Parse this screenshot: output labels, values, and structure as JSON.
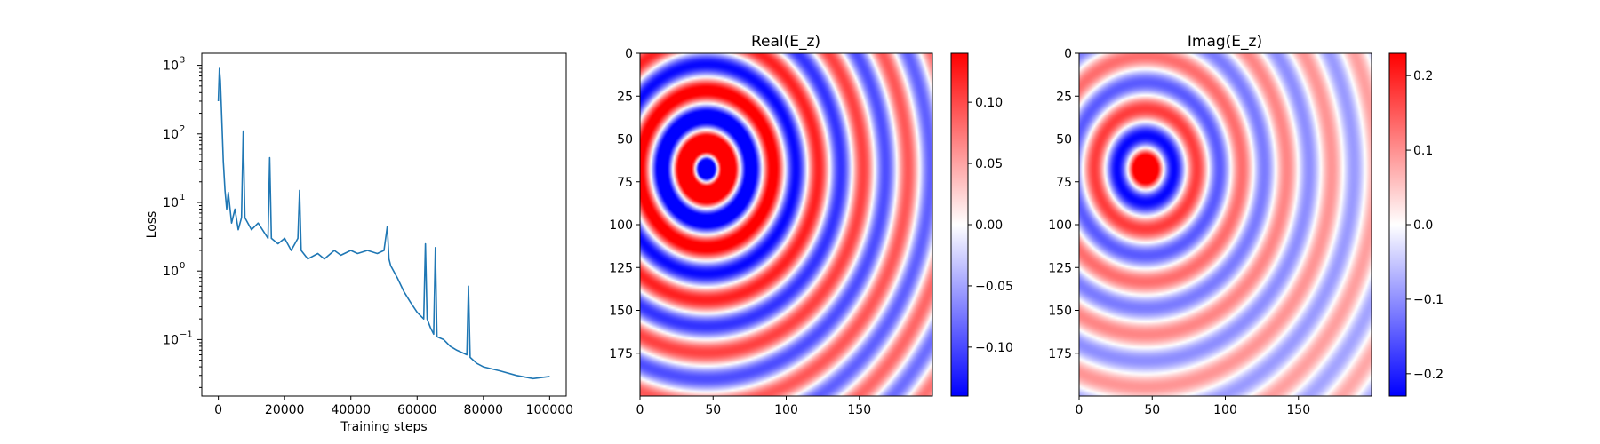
{
  "chart_data": [
    {
      "type": "line",
      "title": "",
      "xlabel": "Training steps",
      "ylabel": "Loss",
      "yscale": "log",
      "xlim": [
        -5000,
        105000
      ],
      "ylim": [
        0.015,
        1500
      ],
      "xticks": [
        0,
        20000,
        40000,
        60000,
        80000,
        100000
      ],
      "xtick_labels": [
        "0",
        "20000",
        "40000",
        "60000",
        "80000",
        "100000"
      ],
      "yticks": [
        0.1,
        1,
        10,
        100,
        1000
      ],
      "ytick_labels": [
        "10",
        "10",
        "10",
        "10",
        "10"
      ],
      "ytick_exponents": [
        "−1",
        "0",
        "1",
        "2",
        "3"
      ],
      "color": "#1f77b4",
      "grid": false,
      "series": [
        {
          "x": [
            0,
            300,
            600,
            900,
            1200,
            1500,
            2000,
            2500,
            3000,
            4000,
            5000,
            6000,
            7000,
            7500,
            8000,
            10000,
            12000,
            15000,
            15500,
            16000,
            18000,
            20000,
            22000,
            24000,
            24500,
            25000,
            27000,
            30000,
            32000,
            35000,
            37000,
            40000,
            42000,
            45000,
            48000,
            50000,
            51000,
            51500,
            52000,
            54000,
            56000,
            58000,
            60000,
            62000,
            62500,
            63000,
            64000,
            65000,
            65500,
            66000,
            68000,
            70000,
            72000,
            75000,
            75500,
            76000,
            78000,
            80000,
            85000,
            90000,
            95000,
            100000
          ],
          "y": [
            300,
            900,
            600,
            250,
            100,
            40,
            15,
            8,
            14,
            5,
            8,
            4,
            6,
            110,
            6,
            4,
            5,
            3,
            45,
            3,
            2.5,
            3,
            2,
            3,
            15,
            2,
            1.5,
            1.8,
            1.5,
            2,
            1.7,
            2,
            1.8,
            2,
            1.8,
            2,
            4.5,
            1.5,
            1.2,
            0.8,
            0.5,
            0.35,
            0.25,
            0.2,
            2.5,
            0.2,
            0.15,
            0.12,
            2.2,
            0.11,
            0.1,
            0.08,
            0.07,
            0.06,
            0.6,
            0.055,
            0.045,
            0.04,
            0.035,
            0.03,
            0.027,
            0.029
          ]
        }
      ]
    },
    {
      "type": "heatmap",
      "title": "Real(E_z)",
      "xlabel": "",
      "ylabel": "",
      "colormap": "bwr",
      "xlim": [
        0,
        200
      ],
      "ylim": [
        200,
        0
      ],
      "xticks": [
        0,
        50,
        100,
        150
      ],
      "yticks": [
        0,
        25,
        50,
        75,
        100,
        125,
        150,
        175
      ],
      "source_center": [
        45,
        67
      ],
      "vmin": -0.14,
      "vmax": 0.14,
      "colorbar_ticks": [
        0.1,
        0.05,
        0.0,
        -0.05,
        -0.1
      ],
      "colorbar_labels": [
        "0.10",
        "0.05",
        "0.00",
        "−0.05",
        "−0.10"
      ]
    },
    {
      "type": "heatmap",
      "title": "Imag(E_z)",
      "xlabel": "",
      "ylabel": "",
      "colormap": "bwr",
      "xlim": [
        0,
        200
      ],
      "ylim": [
        200,
        0
      ],
      "xticks": [
        0,
        50,
        100,
        150
      ],
      "yticks": [
        0,
        25,
        50,
        75,
        100,
        125,
        150,
        175
      ],
      "source_center": [
        45,
        67
      ],
      "vmin": -0.23,
      "vmax": 0.23,
      "colorbar_ticks": [
        0.2,
        0.1,
        0.0,
        -0.1,
        -0.2
      ],
      "colorbar_labels": [
        "0.2",
        "0.1",
        "0.0",
        "−0.1",
        "−0.2"
      ]
    }
  ]
}
